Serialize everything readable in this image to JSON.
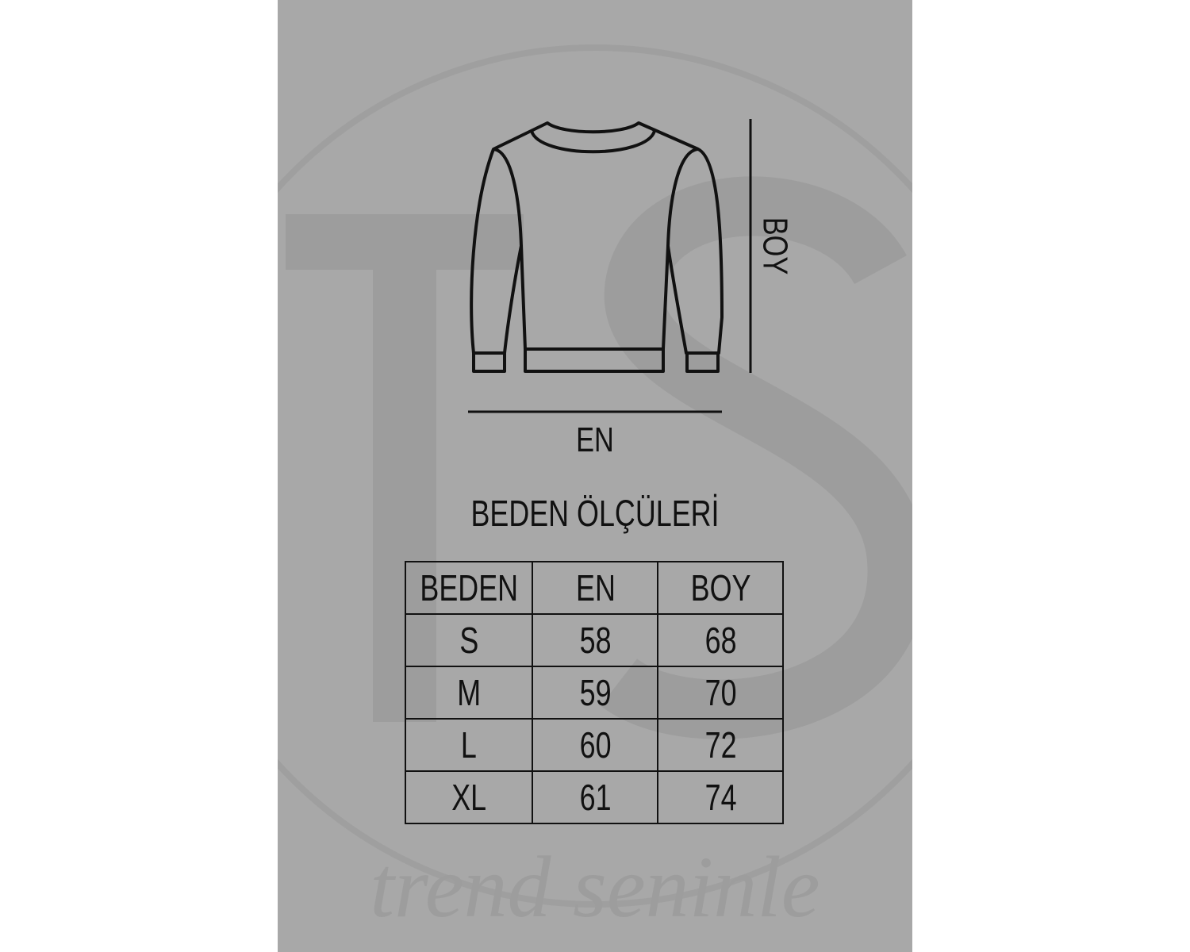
{
  "watermark": {
    "logo_letters": "TS",
    "script_text": "trend seninle"
  },
  "diagram": {
    "height_label": "BOY",
    "width_label": "EN"
  },
  "title": "BEDEN ÖLÇÜLERİ",
  "table": {
    "headers": [
      "BEDEN",
      "EN",
      "BOY"
    ],
    "rows": [
      [
        "S",
        "58",
        "68"
      ],
      [
        "M",
        "59",
        "70"
      ],
      [
        "L",
        "60",
        "72"
      ],
      [
        "XL",
        "61",
        "74"
      ]
    ]
  },
  "colors": {
    "background": "#a8a8a8",
    "ink": "#111111",
    "watermark": "#9d9d9d"
  }
}
